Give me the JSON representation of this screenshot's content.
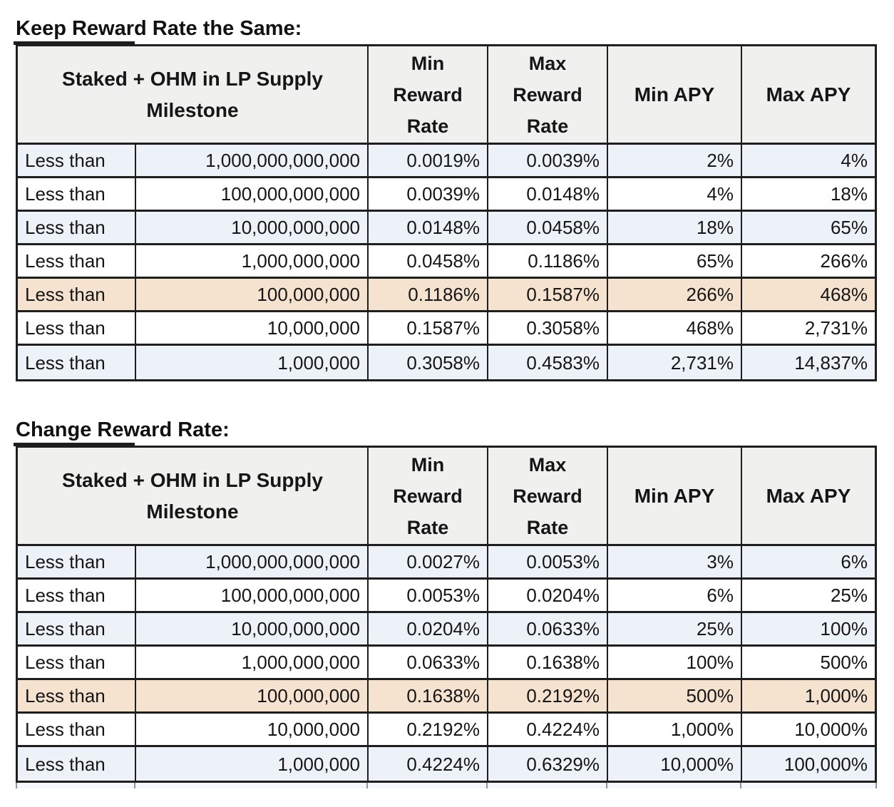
{
  "colors": {
    "border": "#1e1e1e",
    "header_bg": "#f0f0ef",
    "row_alt": "#edf1f8",
    "row_white": "#ffffff",
    "row_highlight": "#f5e3d0"
  },
  "tables": [
    {
      "title": "Keep Reward Rate the Same:",
      "headers": {
        "milestone": "Staked + OHM in LP Supply Milestone",
        "min_rr": "Min Reward Rate",
        "max_rr": "Max Reward Rate",
        "min_apy": "Min APY",
        "max_apy": "Max APY"
      },
      "rows": [
        {
          "prefix": "Less than",
          "milestone": "1,000,000,000,000",
          "min_rr": "0.0019%",
          "max_rr": "0.0039%",
          "min_apy": "2%",
          "max_apy": "4%",
          "band": "alt"
        },
        {
          "prefix": "Less than",
          "milestone": "100,000,000,000",
          "min_rr": "0.0039%",
          "max_rr": "0.0148%",
          "min_apy": "4%",
          "max_apy": "18%",
          "band": "white"
        },
        {
          "prefix": "Less than",
          "milestone": "10,000,000,000",
          "min_rr": "0.0148%",
          "max_rr": "0.0458%",
          "min_apy": "18%",
          "max_apy": "65%",
          "band": "alt"
        },
        {
          "prefix": "Less than",
          "milestone": "1,000,000,000",
          "min_rr": "0.0458%",
          "max_rr": "0.1186%",
          "min_apy": "65%",
          "max_apy": "266%",
          "band": "white"
        },
        {
          "prefix": "Less than",
          "milestone": "100,000,000",
          "min_rr": "0.1186%",
          "max_rr": "0.1587%",
          "min_apy": "266%",
          "max_apy": "468%",
          "band": "highlight"
        },
        {
          "prefix": "Less than",
          "milestone": "10,000,000",
          "min_rr": "0.1587%",
          "max_rr": "0.3058%",
          "min_apy": "468%",
          "max_apy": "2,731%",
          "band": "white"
        },
        {
          "prefix": "Less than",
          "milestone": "1,000,000",
          "min_rr": "0.3058%",
          "max_rr": "0.4583%",
          "min_apy": "2,731%",
          "max_apy": "14,837%",
          "band": "alt"
        }
      ]
    },
    {
      "title": "Change Reward Rate:",
      "headers": {
        "milestone": "Staked + OHM in LP Supply Milestone",
        "min_rr": "Min Reward Rate",
        "max_rr": "Max Reward Rate",
        "min_apy": "Min APY",
        "max_apy": "Max APY"
      },
      "rows": [
        {
          "prefix": "Less than",
          "milestone": "1,000,000,000,000",
          "min_rr": "0.0027%",
          "max_rr": "0.0053%",
          "min_apy": "3%",
          "max_apy": "6%",
          "band": "alt"
        },
        {
          "prefix": "Less than",
          "milestone": "100,000,000,000",
          "min_rr": "0.0053%",
          "max_rr": "0.0204%",
          "min_apy": "6%",
          "max_apy": "25%",
          "band": "white"
        },
        {
          "prefix": "Less than",
          "milestone": "10,000,000,000",
          "min_rr": "0.0204%",
          "max_rr": "0.0633%",
          "min_apy": "25%",
          "max_apy": "100%",
          "band": "alt"
        },
        {
          "prefix": "Less than",
          "milestone": "1,000,000,000",
          "min_rr": "0.0633%",
          "max_rr": "0.1638%",
          "min_apy": "100%",
          "max_apy": "500%",
          "band": "white"
        },
        {
          "prefix": "Less than",
          "milestone": "100,000,000",
          "min_rr": "0.1638%",
          "max_rr": "0.2192%",
          "min_apy": "500%",
          "max_apy": "1,000%",
          "band": "highlight"
        },
        {
          "prefix": "Less than",
          "milestone": "10,000,000",
          "min_rr": "0.2192%",
          "max_rr": "0.4224%",
          "min_apy": "1,000%",
          "max_apy": "10,000%",
          "band": "white"
        },
        {
          "prefix": "Less than",
          "milestone": "1,000,000",
          "min_rr": "0.4224%",
          "max_rr": "0.6329%",
          "min_apy": "10,000%",
          "max_apy": "100,000%",
          "band": "alt"
        }
      ]
    }
  ]
}
